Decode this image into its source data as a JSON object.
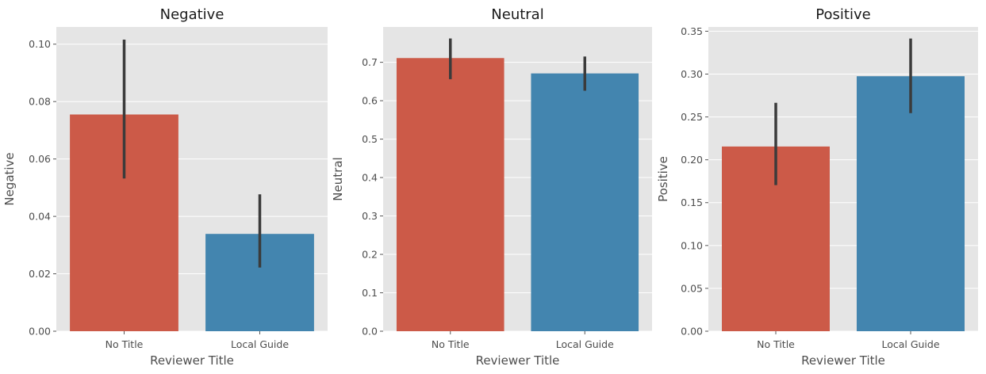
{
  "colors": {
    "no_title": "#CC5A48",
    "local_guide": "#4385AF",
    "panel_bg": "#E5E5E5",
    "grid": "#FFFFFF",
    "error_bar": "#3B3B3B"
  },
  "chart_data": [
    {
      "type": "bar",
      "title": "Negative",
      "xlabel": "Reviewer Title",
      "ylabel": "Negative",
      "categories": [
        "No Title",
        "Local Guide"
      ],
      "values": [
        0.0755,
        0.0339
      ],
      "error_low": [
        0.0532,
        0.0222
      ],
      "error_high": [
        0.1016,
        0.0477
      ],
      "ylim": [
        0,
        0.106
      ],
      "yticks": [
        "0.00",
        "0.02",
        "0.04",
        "0.06",
        "0.08",
        "0.10"
      ],
      "ytick_values": [
        0,
        0.02,
        0.04,
        0.06,
        0.08,
        0.1
      ],
      "grid": true
    },
    {
      "type": "bar",
      "title": "Neutral",
      "xlabel": "Reviewer Title",
      "ylabel": "Neutral",
      "categories": [
        "No Title",
        "Local Guide"
      ],
      "values": [
        0.711,
        0.671
      ],
      "error_low": [
        0.656,
        0.626
      ],
      "error_high": [
        0.762,
        0.715
      ],
      "ylim": [
        0,
        0.792
      ],
      "yticks": [
        "0.0",
        "0.1",
        "0.2",
        "0.3",
        "0.4",
        "0.5",
        "0.6",
        "0.7"
      ],
      "ytick_values": [
        0,
        0.1,
        0.2,
        0.3,
        0.4,
        0.5,
        0.6,
        0.7
      ],
      "grid": true
    },
    {
      "type": "bar",
      "title": "Positive",
      "xlabel": "Reviewer Title",
      "ylabel": "Positive",
      "categories": [
        "No Title",
        "Local Guide"
      ],
      "values": [
        0.2155,
        0.2975
      ],
      "error_low": [
        0.1705,
        0.2545
      ],
      "error_high": [
        0.2665,
        0.3415
      ],
      "ylim": [
        0,
        0.355
      ],
      "yticks": [
        "0.00",
        "0.05",
        "0.10",
        "0.15",
        "0.20",
        "0.25",
        "0.30",
        "0.35"
      ],
      "ytick_values": [
        0,
        0.05,
        0.1,
        0.15,
        0.2,
        0.25,
        0.3,
        0.35
      ],
      "grid": true
    }
  ]
}
